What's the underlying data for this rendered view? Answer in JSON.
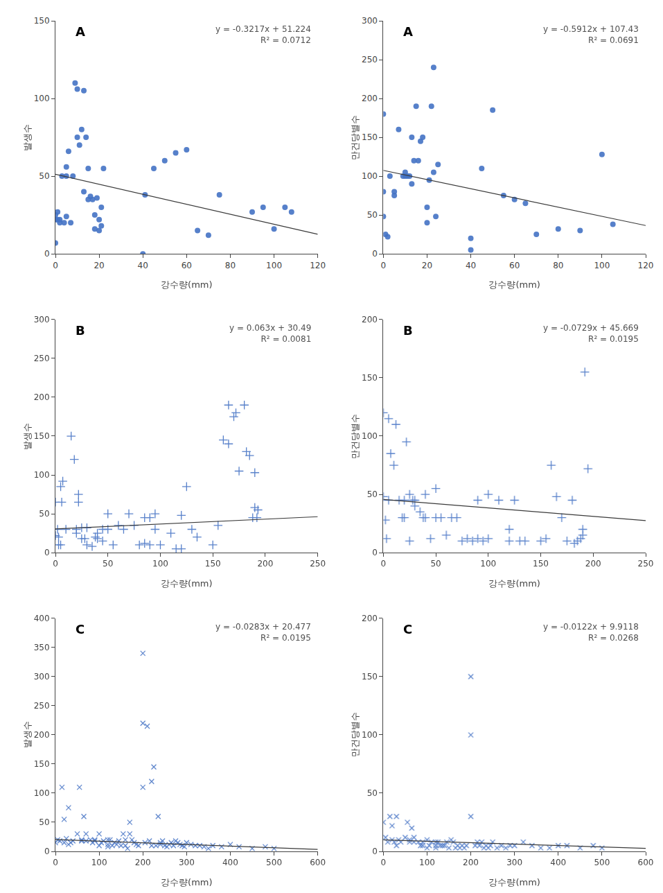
{
  "chart_data": [
    {
      "type": "scatter",
      "xlabel": "강수량(mm)",
      "ylabel": "발생수",
      "annotations": [
        "A",
        "y = -0.3217x + 51.224",
        "R² = 0.0712"
      ],
      "xlim": [
        0,
        120
      ],
      "ylim": [
        0,
        150
      ],
      "xticks": [
        0,
        20,
        40,
        60,
        80,
        100,
        120
      ],
      "yticks": [
        0,
        50,
        100,
        150
      ],
      "grid": false,
      "series": [
        {
          "type": "scatter",
          "color": "#4472c4",
          "marker": "circle",
          "x": [
            0,
            0,
            0,
            1,
            1,
            2,
            2,
            3,
            4,
            5,
            5,
            5,
            6,
            7,
            8,
            9,
            10,
            10,
            11,
            12,
            13,
            13,
            14,
            15,
            15,
            16,
            17,
            18,
            18,
            19,
            20,
            20,
            21,
            21,
            22,
            40,
            41,
            45,
            50,
            55,
            60,
            65,
            70,
            75,
            90,
            95,
            100,
            105,
            108
          ],
          "values": [
            7,
            22,
            25,
            22,
            27,
            20,
            22,
            50,
            20,
            50,
            56,
            24,
            66,
            20,
            50,
            110,
            75,
            106,
            70,
            80,
            40,
            105,
            75,
            35,
            55,
            37,
            35,
            25,
            16,
            36,
            15,
            22,
            18,
            30,
            55,
            0,
            38,
            55,
            60,
            65,
            67,
            15,
            12,
            38,
            27,
            30,
            16,
            30,
            27
          ]
        },
        {
          "type": "line",
          "color": "#3a3a3a",
          "line_style": "solid",
          "x": [
            0,
            120
          ],
          "values": [
            51.224,
            12.62
          ]
        }
      ]
    },
    {
      "type": "scatter",
      "xlabel": "강수량(mm)",
      "ylabel": "만건당별수",
      "annotations": [
        "A",
        "y = -0.5912x + 107.43",
        "R² = 0.0691"
      ],
      "xlim": [
        0,
        120
      ],
      "ylim": [
        0,
        300
      ],
      "xticks": [
        0,
        20,
        40,
        60,
        80,
        100,
        120
      ],
      "yticks": [
        0,
        50,
        100,
        150,
        200,
        250,
        300
      ],
      "grid": false,
      "series": [
        {
          "type": "scatter",
          "color": "#4472c4",
          "marker": "circle",
          "x": [
            0,
            0,
            0,
            1,
            2,
            3,
            5,
            5,
            7,
            9,
            10,
            10,
            11,
            12,
            13,
            13,
            14,
            15,
            16,
            17,
            18,
            20,
            20,
            21,
            22,
            23,
            23,
            24,
            25,
            40,
            40,
            45,
            50,
            55,
            60,
            65,
            70,
            80,
            90,
            100,
            105
          ],
          "values": [
            180,
            80,
            48,
            25,
            22,
            100,
            80,
            75,
            160,
            100,
            105,
            100,
            100,
            100,
            90,
            150,
            120,
            190,
            120,
            145,
            150,
            40,
            60,
            95,
            190,
            240,
            105,
            48,
            115,
            5,
            20,
            110,
            185,
            75,
            70,
            65,
            25,
            32,
            30,
            128,
            38
          ]
        },
        {
          "type": "line",
          "color": "#3a3a3a",
          "line_style": "solid",
          "x": [
            0,
            120
          ],
          "values": [
            107.43,
            36.486
          ]
        }
      ]
    },
    {
      "type": "scatter",
      "xlabel": "강수량(mm)",
      "ylabel": "발생수",
      "annotations": [
        "B",
        "y = 0.063x + 30.49",
        "R² = 0.0081"
      ],
      "xlim": [
        0,
        250
      ],
      "ylim": [
        0,
        300
      ],
      "xticks": [
        0,
        50,
        100,
        150,
        200,
        250
      ],
      "yticks": [
        0,
        50,
        100,
        150,
        200,
        250,
        300
      ],
      "grid": false,
      "series": [
        {
          "type": "scatter",
          "color": "#4472c4",
          "marker": "plus",
          "x": [
            0,
            0,
            2,
            3,
            3,
            5,
            5,
            6,
            7,
            10,
            15,
            18,
            20,
            20,
            22,
            22,
            25,
            25,
            28,
            30,
            30,
            35,
            38,
            40,
            40,
            45,
            45,
            50,
            50,
            55,
            60,
            65,
            70,
            75,
            80,
            85,
            85,
            90,
            90,
            95,
            95,
            100,
            110,
            115,
            120,
            120,
            125,
            130,
            135,
            150,
            155,
            160,
            165,
            165,
            170,
            172,
            175,
            180,
            182,
            185,
            188,
            190,
            190,
            192,
            193
          ],
          "values": [
            65,
            22,
            30,
            20,
            10,
            10,
            85,
            65,
            92,
            30,
            150,
            120,
            25,
            30,
            75,
            65,
            32,
            18,
            18,
            32,
            10,
            8,
            20,
            25,
            18,
            15,
            30,
            30,
            50,
            10,
            35,
            30,
            50,
            35,
            10,
            12,
            45,
            10,
            45,
            50,
            30,
            10,
            25,
            5,
            48,
            5,
            85,
            30,
            20,
            10,
            35,
            145,
            190,
            140,
            175,
            180,
            105,
            190,
            130,
            125,
            45,
            103,
            58,
            45,
            55
          ]
        },
        {
          "type": "line",
          "color": "#3a3a3a",
          "line_style": "solid",
          "x": [
            0,
            250
          ],
          "values": [
            30.49,
            46.24
          ]
        }
      ]
    },
    {
      "type": "scatter",
      "xlabel": "강수량(mm)",
      "ylabel": "만건당별수",
      "annotations": [
        "B",
        "y = -0.0729x + 45.669",
        "R² = 0.0195"
      ],
      "xlim": [
        0,
        250
      ],
      "ylim": [
        0,
        200
      ],
      "xticks": [
        0,
        50,
        100,
        150,
        200,
        250
      ],
      "yticks": [
        0,
        50,
        100,
        150,
        200
      ],
      "grid": false,
      "series": [
        {
          "type": "scatter",
          "color": "#4472c4",
          "marker": "plus",
          "x": [
            0,
            0,
            2,
            3,
            5,
            5,
            7,
            10,
            12,
            15,
            18,
            20,
            20,
            22,
            25,
            25,
            28,
            30,
            30,
            35,
            38,
            40,
            40,
            45,
            50,
            50,
            55,
            60,
            65,
            70,
            75,
            80,
            85,
            90,
            90,
            95,
            100,
            100,
            110,
            120,
            120,
            125,
            130,
            135,
            150,
            155,
            160,
            165,
            170,
            175,
            180,
            182,
            185,
            188,
            190,
            190,
            192,
            195
          ],
          "values": [
            120,
            48,
            28,
            12,
            115,
            45,
            85,
            75,
            110,
            45,
            30,
            45,
            30,
            95,
            50,
            10,
            45,
            40,
            45,
            35,
            30,
            50,
            30,
            12,
            55,
            30,
            30,
            15,
            30,
            30,
            10,
            12,
            10,
            12,
            45,
            10,
            12,
            50,
            45,
            20,
            10,
            45,
            10,
            10,
            10,
            12,
            75,
            48,
            30,
            10,
            45,
            8,
            10,
            12,
            15,
            20,
            155,
            72
          ]
        },
        {
          "type": "line",
          "color": "#3a3a3a",
          "line_style": "solid",
          "x": [
            0,
            250
          ],
          "values": [
            45.669,
            27.444
          ]
        }
      ]
    },
    {
      "type": "scatter",
      "xlabel": "강수량(mm)",
      "ylabel": "발생수",
      "annotations": [
        "C",
        "y = -0.0283x + 20.477",
        "R² = 0.0195"
      ],
      "xlim": [
        0,
        600
      ],
      "ylim": [
        0,
        400
      ],
      "xticks": [
        0,
        100,
        200,
        300,
        400,
        500,
        600
      ],
      "yticks": [
        0,
        50,
        100,
        150,
        200,
        250,
        300,
        350,
        400
      ],
      "grid": false,
      "series": [
        {
          "type": "scatter",
          "color": "#4472c4",
          "marker": "x",
          "x": [
            0,
            5,
            10,
            15,
            20,
            20,
            25,
            30,
            30,
            35,
            40,
            50,
            55,
            60,
            60,
            65,
            70,
            70,
            80,
            85,
            90,
            90,
            100,
            100,
            105,
            110,
            120,
            120,
            120,
            125,
            130,
            135,
            140,
            145,
            150,
            155,
            160,
            160,
            165,
            170,
            170,
            175,
            180,
            185,
            190,
            200,
            200,
            200,
            205,
            210,
            215,
            220,
            220,
            225,
            230,
            235,
            240,
            240,
            245,
            250,
            255,
            260,
            265,
            270,
            275,
            280,
            285,
            290,
            295,
            300,
            310,
            320,
            330,
            340,
            350,
            360,
            380,
            400,
            420,
            450,
            480,
            500
          ],
          "values": [
            15,
            20,
            18,
            110,
            15,
            55,
            22,
            12,
            75,
            15,
            18,
            30,
            110,
            20,
            18,
            60,
            18,
            30,
            20,
            15,
            20,
            18,
            10,
            30,
            15,
            18,
            20,
            12,
            8,
            20,
            10,
            15,
            12,
            18,
            10,
            30,
            20,
            10,
            5,
            50,
            30,
            20,
            15,
            12,
            10,
            340,
            220,
            110,
            15,
            215,
            18,
            120,
            10,
            145,
            10,
            60,
            12,
            15,
            18,
            10,
            8,
            12,
            15,
            10,
            18,
            15,
            12,
            10,
            8,
            15,
            12,
            10,
            10,
            8,
            5,
            10,
            8,
            12,
            8,
            5,
            8,
            5
          ]
        },
        {
          "type": "line",
          "color": "#3a3a3a",
          "line_style": "solid",
          "x": [
            0,
            600
          ],
          "values": [
            20.477,
            3.497
          ]
        }
      ]
    },
    {
      "type": "scatter",
      "xlabel": "강수량(mm)",
      "ylabel": "만건당별수",
      "annotations": [
        "C",
        "y = -0.0122x + 9.9118",
        "R² = 0.0268"
      ],
      "xlim": [
        0,
        600
      ],
      "ylim": [
        0,
        200
      ],
      "xticks": [
        0,
        100,
        200,
        300,
        400,
        500,
        600
      ],
      "yticks": [
        0,
        50,
        100,
        150,
        200
      ],
      "grid": false,
      "series": [
        {
          "type": "scatter",
          "color": "#4472c4",
          "marker": "x",
          "x": [
            0,
            5,
            10,
            15,
            20,
            20,
            25,
            30,
            30,
            35,
            40,
            50,
            55,
            60,
            60,
            65,
            70,
            70,
            80,
            85,
            90,
            90,
            100,
            100,
            105,
            110,
            120,
            120,
            120,
            125,
            130,
            135,
            140,
            145,
            150,
            155,
            160,
            165,
            170,
            175,
            180,
            185,
            190,
            200,
            200,
            200,
            210,
            215,
            220,
            225,
            230,
            235,
            240,
            245,
            250,
            260,
            270,
            280,
            290,
            300,
            320,
            340,
            360,
            380,
            400,
            420,
            450,
            480,
            500
          ],
          "values": [
            25,
            12,
            8,
            30,
            10,
            22,
            8,
            5,
            30,
            10,
            8,
            12,
            25,
            8,
            10,
            20,
            8,
            12,
            8,
            5,
            8,
            5,
            3,
            10,
            5,
            8,
            8,
            5,
            3,
            8,
            5,
            5,
            5,
            8,
            3,
            10,
            8,
            3,
            5,
            3,
            5,
            3,
            5,
            150,
            100,
            30,
            5,
            8,
            5,
            8,
            3,
            5,
            3,
            5,
            8,
            3,
            5,
            3,
            5,
            5,
            8,
            5,
            3,
            3,
            5,
            5,
            3,
            5,
            3
          ]
        },
        {
          "type": "line",
          "color": "#3a3a3a",
          "line_style": "solid",
          "x": [
            0,
            600
          ],
          "values": [
            9.9118,
            2.5918
          ]
        }
      ]
    }
  ]
}
